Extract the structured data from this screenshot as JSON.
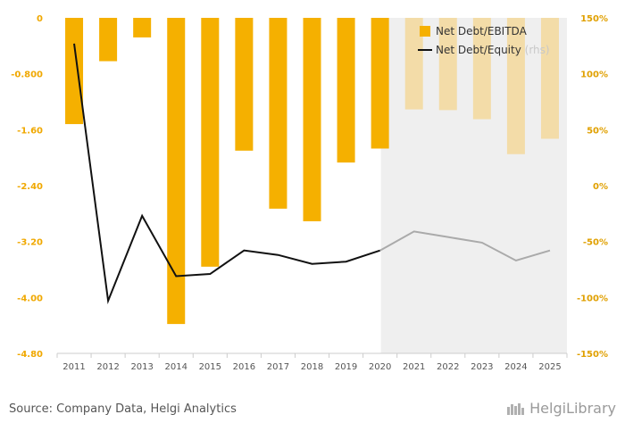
{
  "chart_data": {
    "type": "bar+line",
    "categories": [
      "2011",
      "2012",
      "2013",
      "2014",
      "2015",
      "2016",
      "2017",
      "2018",
      "2019",
      "2020",
      "2021",
      "2022",
      "2023",
      "2024",
      "2025"
    ],
    "series": [
      {
        "name": "Net Debt/EBITDA",
        "axis": "left",
        "type": "bar",
        "color": "#f5b000",
        "forecast_color": "#f3dca8",
        "values": [
          -1.52,
          -0.62,
          -0.28,
          -4.38,
          -3.56,
          -1.9,
          -2.73,
          -2.91,
          -2.07,
          -1.87,
          -1.31,
          -1.32,
          -1.45,
          -1.95,
          -1.73
        ]
      },
      {
        "name": "Net Debt/Equity",
        "axis": "right",
        "type": "line",
        "color": "#111111",
        "forecast_color": "#aaaaaa",
        "values": [
          127,
          -103,
          -27,
          -81,
          -79,
          -58,
          -62,
          -70,
          -68,
          -58,
          -41,
          -46,
          -51,
          -67,
          -58
        ]
      }
    ],
    "legend": {
      "position": "top-right",
      "entries": [
        "Net Debt/EBITDA",
        "Net Debt/Equity"
      ],
      "line_suffix": "(rhs)"
    },
    "left_axis": {
      "ylim": [
        -4.8,
        0
      ],
      "ticks": [
        "0",
        "-0.800",
        "-1.60",
        "-2.40",
        "-3.20",
        "-4.00",
        "-4.80"
      ]
    },
    "right_axis": {
      "ylim": [
        -150,
        150
      ],
      "ticks": [
        "150%",
        "100%",
        "50%",
        "0%",
        "-50%",
        "-100%",
        "-150%"
      ]
    },
    "forecast_start_category": "2021",
    "grid": false
  },
  "footer": {
    "source": "Source: Company Data, Helgi Analytics",
    "brand": "HelgiLibrary"
  }
}
